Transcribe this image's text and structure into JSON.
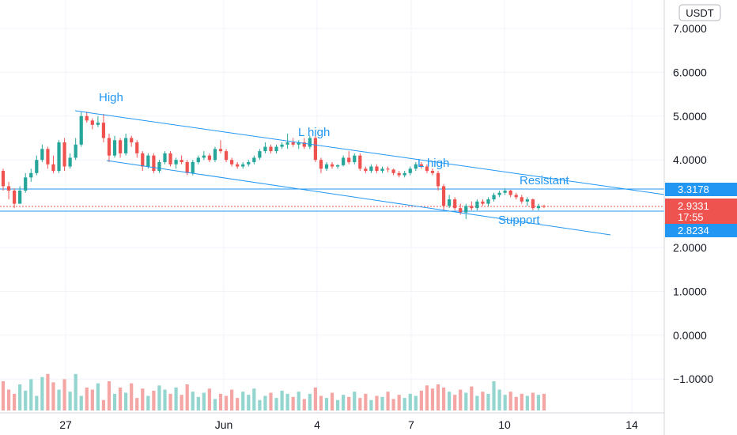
{
  "chart_data": {
    "type": "candlestick",
    "currency": "USDT",
    "y_ticks": [
      "7.0000",
      "6.0000",
      "5.0000",
      "4.0000",
      "2.0000",
      "1.0000",
      "0.0000",
      "−1.0000"
    ],
    "x_ticks": [
      "27",
      "Jun",
      "4",
      "7",
      "10",
      "14"
    ],
    "price_labels": {
      "resistance": "3.3178",
      "current": "2.9331",
      "countdown": "17:55",
      "support": "2.8234"
    },
    "annotations": [
      "High",
      "L high",
      "L high",
      "Resistant",
      "Support"
    ],
    "ylim": [
      -1.8,
      7.6
    ],
    "candles": [
      [
        3.75,
        3.8,
        3.3,
        3.4
      ],
      [
        3.4,
        3.5,
        3.1,
        3.3
      ],
      [
        3.3,
        3.35,
        2.9,
        3.0
      ],
      [
        3.0,
        3.4,
        3.0,
        3.3
      ],
      [
        3.3,
        3.7,
        3.25,
        3.6
      ],
      [
        3.6,
        3.8,
        3.5,
        3.7
      ],
      [
        3.7,
        4.1,
        3.65,
        4.0
      ],
      [
        4.0,
        4.35,
        3.95,
        4.25
      ],
      [
        4.25,
        4.3,
        3.8,
        3.9
      ],
      [
        3.9,
        4.1,
        3.7,
        3.75
      ],
      [
        3.75,
        4.45,
        3.7,
        4.4
      ],
      [
        4.4,
        4.5,
        3.75,
        3.85
      ],
      [
        3.85,
        4.15,
        3.8,
        4.05
      ],
      [
        4.05,
        4.5,
        4.0,
        4.35
      ],
      [
        4.35,
        5.1,
        4.3,
        5.0
      ],
      [
        5.0,
        5.1,
        4.85,
        4.9
      ],
      [
        4.9,
        4.95,
        4.7,
        4.8
      ],
      [
        4.8,
        5.0,
        4.75,
        4.85
      ],
      [
        4.85,
        5.05,
        4.4,
        4.5
      ],
      [
        4.5,
        4.6,
        3.95,
        4.1
      ],
      [
        4.1,
        4.55,
        4.05,
        4.45
      ],
      [
        4.45,
        4.5,
        4.05,
        4.15
      ],
      [
        4.15,
        4.6,
        4.1,
        4.5
      ],
      [
        4.5,
        4.55,
        4.3,
        4.4
      ],
      [
        4.4,
        4.45,
        4.05,
        4.15
      ],
      [
        4.15,
        4.2,
        3.75,
        3.85
      ],
      [
        3.85,
        4.15,
        3.8,
        4.1
      ],
      [
        4.1,
        4.15,
        3.7,
        3.75
      ],
      [
        3.75,
        4.0,
        3.7,
        3.95
      ],
      [
        3.95,
        4.2,
        3.9,
        4.15
      ],
      [
        4.15,
        4.2,
        3.85,
        3.9
      ],
      [
        3.9,
        4.05,
        3.8,
        4.0
      ],
      [
        4.0,
        4.1,
        3.9,
        3.95
      ],
      [
        3.95,
        4.0,
        3.65,
        3.7
      ],
      [
        3.7,
        4.0,
        3.65,
        3.95
      ],
      [
        3.95,
        4.1,
        3.9,
        4.05
      ],
      [
        4.05,
        4.2,
        4.0,
        4.1
      ],
      [
        4.1,
        4.15,
        3.95,
        4.0
      ],
      [
        4.0,
        4.3,
        3.95,
        4.25
      ],
      [
        4.25,
        4.45,
        4.15,
        4.2
      ],
      [
        4.2,
        4.25,
        3.95,
        4.0
      ],
      [
        4.0,
        4.05,
        3.85,
        3.9
      ],
      [
        3.9,
        3.95,
        3.8,
        3.85
      ],
      [
        3.85,
        3.95,
        3.8,
        3.9
      ],
      [
        3.9,
        4.0,
        3.85,
        3.95
      ],
      [
        3.95,
        4.1,
        3.9,
        4.05
      ],
      [
        4.05,
        4.25,
        4.0,
        4.2
      ],
      [
        4.2,
        4.4,
        4.15,
        4.3
      ],
      [
        4.3,
        4.35,
        4.15,
        4.2
      ],
      [
        4.2,
        4.35,
        4.15,
        4.3
      ],
      [
        4.3,
        4.4,
        4.25,
        4.35
      ],
      [
        4.35,
        4.6,
        4.25,
        4.4
      ],
      [
        4.4,
        4.5,
        4.3,
        4.35
      ],
      [
        4.35,
        4.45,
        4.25,
        4.4
      ],
      [
        4.4,
        4.5,
        4.25,
        4.3
      ],
      [
        4.3,
        4.55,
        4.25,
        4.5
      ],
      [
        4.5,
        4.55,
        3.95,
        4.0
      ],
      [
        4.0,
        4.05,
        3.7,
        3.8
      ],
      [
        3.8,
        3.95,
        3.75,
        3.9
      ],
      [
        3.9,
        3.95,
        3.8,
        3.85
      ],
      [
        3.85,
        3.9,
        3.8,
        3.88
      ],
      [
        3.88,
        4.1,
        3.85,
        4.05
      ],
      [
        4.05,
        4.2,
        3.9,
        3.95
      ],
      [
        3.95,
        4.15,
        3.9,
        4.1
      ],
      [
        4.1,
        4.15,
        3.75,
        3.8
      ],
      [
        3.8,
        3.85,
        3.7,
        3.75
      ],
      [
        3.75,
        3.9,
        3.7,
        3.85
      ],
      [
        3.85,
        3.9,
        3.7,
        3.75
      ],
      [
        3.75,
        3.85,
        3.7,
        3.8
      ],
      [
        3.8,
        3.85,
        3.72,
        3.78
      ],
      [
        3.78,
        3.8,
        3.65,
        3.7
      ],
      [
        3.7,
        3.75,
        3.6,
        3.65
      ],
      [
        3.65,
        3.75,
        3.6,
        3.7
      ],
      [
        3.7,
        3.85,
        3.65,
        3.8
      ],
      [
        3.8,
        3.95,
        3.75,
        3.9
      ],
      [
        3.9,
        3.95,
        3.8,
        3.85
      ],
      [
        3.85,
        3.9,
        3.7,
        3.75
      ],
      [
        3.75,
        3.8,
        3.65,
        3.7
      ],
      [
        3.7,
        3.75,
        3.3,
        3.4
      ],
      [
        3.4,
        3.45,
        2.85,
        2.95
      ],
      [
        2.95,
        3.2,
        2.9,
        3.1
      ],
      [
        3.1,
        3.15,
        2.85,
        2.9
      ],
      [
        2.9,
        3.0,
        2.75,
        2.8
      ],
      [
        2.8,
        3.0,
        2.65,
        2.95
      ],
      [
        2.95,
        3.05,
        2.85,
        2.9
      ],
      [
        2.9,
        3.1,
        2.85,
        3.05
      ],
      [
        3.05,
        3.1,
        2.95,
        3.0
      ],
      [
        3.0,
        3.15,
        2.95,
        3.1
      ],
      [
        3.1,
        3.25,
        3.05,
        3.2
      ],
      [
        3.2,
        3.3,
        3.15,
        3.25
      ],
      [
        3.25,
        3.35,
        3.2,
        3.3
      ],
      [
        3.3,
        3.32,
        3.15,
        3.2
      ],
      [
        3.2,
        3.25,
        3.1,
        3.15
      ],
      [
        3.15,
        3.2,
        3.0,
        3.05
      ],
      [
        3.05,
        3.15,
        2.95,
        3.1
      ],
      [
        3.1,
        3.12,
        2.85,
        2.9
      ],
      [
        2.9,
        3.0,
        2.85,
        2.95
      ],
      [
        2.95,
        2.98,
        2.9,
        2.93
      ]
    ],
    "volume_scale_max": 1.0,
    "volume": [
      0.28,
      0.2,
      0.16,
      0.25,
      0.19,
      0.3,
      0.14,
      0.32,
      0.35,
      0.27,
      0.2,
      0.3,
      0.18,
      0.35,
      0.14,
      0.22,
      0.2,
      0.26,
      0.1,
      0.28,
      0.16,
      0.22,
      0.17,
      0.26,
      0.12,
      0.21,
      0.14,
      0.19,
      0.24,
      0.2,
      0.16,
      0.22,
      0.15,
      0.25,
      0.18,
      0.13,
      0.17,
      0.21,
      0.11,
      0.16,
      0.14,
      0.2,
      0.12,
      0.18,
      0.15,
      0.21,
      0.1,
      0.14,
      0.17,
      0.12,
      0.19,
      0.16,
      0.13,
      0.18,
      0.11,
      0.16,
      0.22,
      0.14,
      0.12,
      0.17,
      0.1,
      0.15,
      0.13,
      0.18,
      0.12,
      0.16,
      0.1,
      0.14,
      0.13,
      0.18,
      0.11,
      0.15,
      0.12,
      0.16,
      0.14,
      0.19,
      0.24,
      0.21,
      0.25,
      0.22,
      0.18,
      0.15,
      0.2,
      0.17,
      0.23,
      0.14,
      0.18,
      0.16,
      0.28,
      0.2,
      0.15,
      0.18,
      0.13,
      0.16,
      0.14,
      0.17,
      0.15,
      0.16
    ],
    "colors": {
      "up": "#26a69a",
      "down": "#ef5350",
      "volume_up": "#94d6cf",
      "volume_down": "#f4a6a4",
      "trendline": "#2196f3",
      "annotation": "#2196f3",
      "current_price_bg": "#ef5350",
      "label_bg": "#2196f3",
      "grid": "#f0f3fa"
    }
  }
}
